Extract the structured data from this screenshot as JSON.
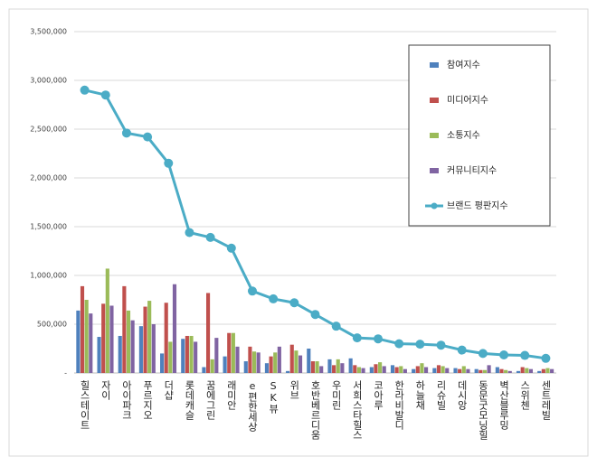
{
  "chart_data": {
    "type": "bar",
    "categories": [
      "힐스테이트",
      "자이",
      "아이파크",
      "푸르지오",
      "더샵",
      "롯데캐슬",
      "꿈에그린",
      "래미안",
      "e편한세상",
      "SK뷰",
      "위브",
      "호반베르디움",
      "우미린",
      "서희스타힐스",
      "코아루",
      "한라비발디",
      "하늘채",
      "리슈빌",
      "데시앙",
      "동문굿모닝힐",
      "벽산블루밍",
      "스위첸",
      "센트레빌"
    ],
    "series": [
      {
        "name": "참여지수",
        "color": "#4f81bd",
        "values": [
          640000,
          370000,
          380000,
          480000,
          200000,
          350000,
          60000,
          170000,
          120000,
          100000,
          20000,
          250000,
          140000,
          150000,
          60000,
          80000,
          40000,
          50000,
          50000,
          40000,
          60000,
          20000,
          20000
        ]
      },
      {
        "name": "미디어지수",
        "color": "#c0504d",
        "values": [
          890000,
          710000,
          890000,
          680000,
          720000,
          380000,
          820000,
          410000,
          270000,
          170000,
          290000,
          120000,
          80000,
          80000,
          90000,
          60000,
          70000,
          80000,
          40000,
          30000,
          40000,
          60000,
          40000
        ]
      },
      {
        "name": "소통지수",
        "color": "#9bbb59",
        "values": [
          750000,
          1070000,
          640000,
          740000,
          320000,
          380000,
          140000,
          410000,
          220000,
          210000,
          230000,
          120000,
          140000,
          60000,
          110000,
          70000,
          100000,
          70000,
          70000,
          30000,
          30000,
          50000,
          50000
        ]
      },
      {
        "name": "커뮤니티지수",
        "color": "#8064a2",
        "values": [
          610000,
          690000,
          540000,
          500000,
          910000,
          320000,
          360000,
          270000,
          210000,
          270000,
          180000,
          70000,
          100000,
          50000,
          70000,
          40000,
          60000,
          50000,
          40000,
          80000,
          20000,
          40000,
          40000
        ]
      },
      {
        "name": "브랜드 평판지수",
        "color": "#4bacc6",
        "type": "line",
        "values": [
          2900000,
          2850000,
          2460000,
          2420000,
          2150000,
          1440000,
          1390000,
          1280000,
          840000,
          760000,
          720000,
          600000,
          480000,
          360000,
          350000,
          300000,
          295000,
          285000,
          235000,
          200000,
          185000,
          180000,
          150000
        ]
      }
    ],
    "ylim": [
      0,
      3500000
    ],
    "yticks": [
      {
        "value": 0,
        "label": "-"
      },
      {
        "value": 500000,
        "label": "500,000"
      },
      {
        "value": 1000000,
        "label": "1,000,000"
      },
      {
        "value": 1500000,
        "label": "1,500,000"
      },
      {
        "value": 2000000,
        "label": "2,000,000"
      },
      {
        "value": 2500000,
        "label": "2,500,000"
      },
      {
        "value": 3000000,
        "label": "3,000,000"
      },
      {
        "value": 3500000,
        "label": "3,500,000"
      }
    ],
    "grid": true,
    "legend": "top-right"
  }
}
